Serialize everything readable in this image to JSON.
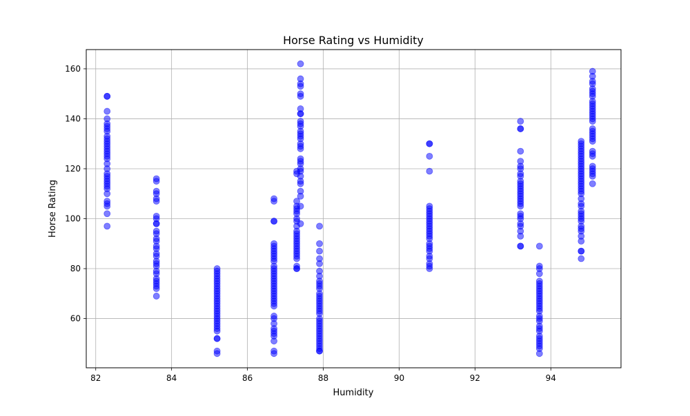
{
  "chart_data": {
    "type": "scatter",
    "title": "Horse Rating vs Humidity",
    "xlabel": "Humidity",
    "ylabel": "Horse Rating",
    "xlim": [
      81.75,
      95.85
    ],
    "ylim": [
      40.3,
      167.7
    ],
    "xticks": [
      82,
      84,
      86,
      88,
      90,
      92,
      94
    ],
    "yticks": [
      60,
      80,
      100,
      120,
      140,
      160
    ],
    "grid": true,
    "marker_color": "#0000ff",
    "marker_alpha": 0.5,
    "groups": [
      {
        "x": 82.3,
        "y": [
          149,
          149,
          143,
          140,
          138,
          137,
          136,
          135,
          133,
          132,
          131,
          130,
          129,
          128,
          127,
          126,
          125,
          124,
          122,
          120,
          118,
          117,
          116,
          115,
          114,
          113,
          112,
          110,
          107,
          106,
          105,
          102,
          97
        ]
      },
      {
        "x": 83.6,
        "y": [
          116,
          115,
          111,
          110,
          108,
          107,
          101,
          100,
          98,
          98,
          95,
          94,
          92,
          91,
          89,
          88,
          86,
          85,
          83,
          82,
          81,
          79,
          78,
          76,
          75,
          74,
          73,
          72,
          69
        ]
      },
      {
        "x": 85.2,
        "y": [
          80,
          79,
          78,
          77,
          76,
          75,
          74,
          73,
          72,
          71,
          70,
          69,
          68,
          67,
          66,
          65,
          64,
          63,
          62,
          61,
          60,
          59,
          58,
          57,
          56,
          55,
          52,
          52,
          47,
          46
        ]
      },
      {
        "x": 86.7,
        "y": [
          108,
          107,
          99,
          99,
          90,
          89,
          88,
          87,
          86,
          85,
          84,
          83,
          81,
          80,
          79,
          78,
          77,
          76,
          75,
          74,
          73,
          72,
          71,
          70,
          69,
          68,
          67,
          66,
          65,
          61,
          60,
          58,
          56,
          55,
          54,
          53,
          51,
          47,
          46
        ]
      },
      {
        "x": 87.3,
        "y": [
          119,
          118,
          107,
          105,
          104,
          103,
          102,
          100,
          99,
          97,
          95,
          94,
          93,
          92,
          91,
          90,
          89,
          88,
          87,
          86,
          85,
          84,
          81,
          80,
          80
        ]
      },
      {
        "x": 87.4,
        "y": [
          162,
          156,
          154,
          153,
          150,
          149,
          144,
          142,
          142,
          139,
          138,
          137,
          135,
          134,
          133,
          132,
          130,
          129,
          128,
          124,
          123,
          122,
          120,
          119,
          117,
          115,
          114,
          111,
          109,
          105,
          98
        ]
      },
      {
        "x": 87.9,
        "y": [
          97,
          90,
          87,
          84,
          82,
          79,
          77,
          75,
          74,
          73,
          72,
          70,
          69,
          68,
          67,
          66,
          65,
          64,
          63,
          62,
          60,
          59,
          58,
          57,
          56,
          55,
          54,
          53,
          52,
          51,
          50,
          49,
          48,
          47,
          47
        ]
      },
      {
        "x": 90.8,
        "y": [
          130,
          130,
          125,
          119,
          105,
          104,
          103,
          102,
          101,
          100,
          99,
          98,
          97,
          96,
          95,
          94,
          93,
          92,
          90,
          89,
          88,
          87,
          85,
          84,
          82,
          81,
          80
        ]
      },
      {
        "x": 93.2,
        "y": [
          139,
          136,
          136,
          127,
          123,
          121,
          120,
          118,
          117,
          115,
          114,
          113,
          112,
          111,
          110,
          109,
          108,
          107,
          106,
          105,
          102,
          101,
          100,
          98,
          97,
          95,
          93,
          89,
          89
        ]
      },
      {
        "x": 93.7,
        "y": [
          89,
          81,
          80,
          78,
          75,
          74,
          73,
          72,
          71,
          70,
          69,
          68,
          67,
          66,
          65,
          64,
          63,
          61,
          60,
          59,
          57,
          56,
          55,
          53,
          52,
          51,
          50,
          49,
          48,
          46
        ]
      },
      {
        "x": 94.8,
        "y": [
          131,
          130,
          129,
          128,
          127,
          126,
          125,
          124,
          123,
          122,
          121,
          120,
          119,
          118,
          117,
          116,
          115,
          114,
          113,
          112,
          111,
          110,
          108,
          106,
          105,
          103,
          102,
          101,
          100,
          99,
          97,
          96,
          95,
          93,
          91,
          87,
          87,
          84
        ]
      },
      {
        "x": 95.1,
        "y": [
          159,
          157,
          155,
          154,
          152,
          151,
          150,
          149,
          147,
          146,
          145,
          144,
          143,
          142,
          141,
          140,
          139,
          136,
          135,
          134,
          133,
          132,
          131,
          127,
          126,
          125,
          121,
          120,
          119,
          118,
          117,
          114
        ]
      }
    ]
  }
}
